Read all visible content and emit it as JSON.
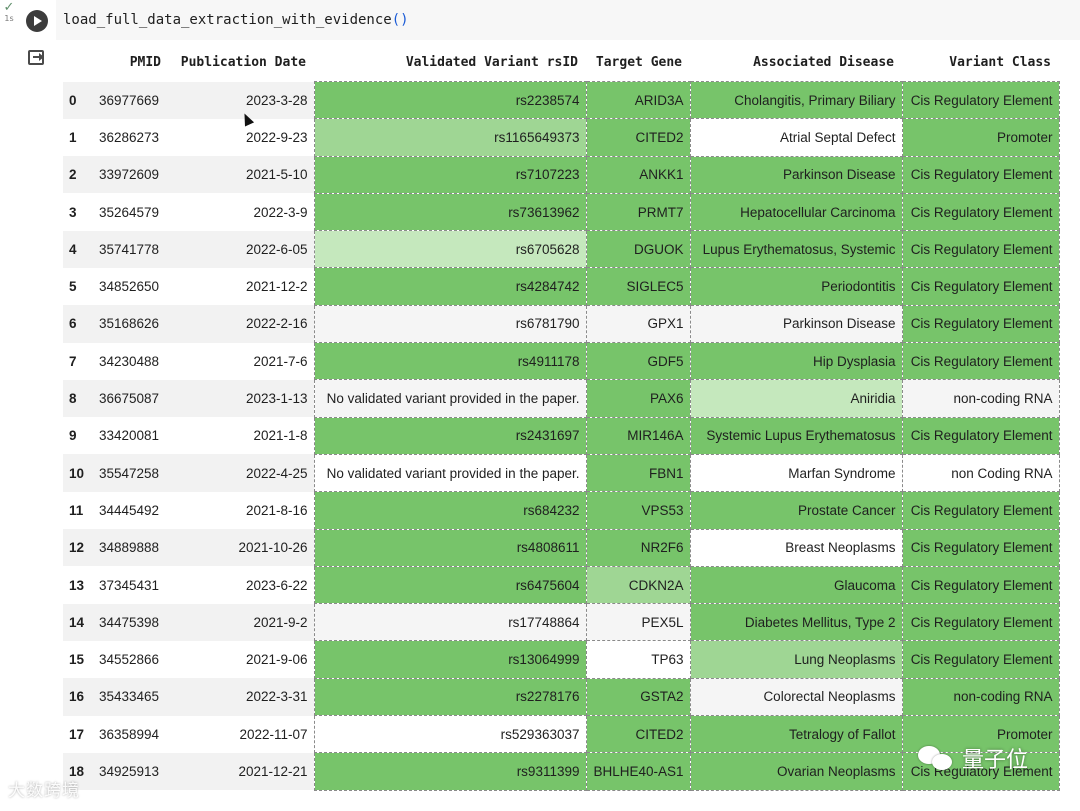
{
  "cell": {
    "status_check": "✓",
    "exec_time": "1s",
    "code_func": "load_full_data_extraction_with_evidence",
    "code_parens": "()"
  },
  "table": {
    "columns": [
      "",
      "PMID",
      "Publication Date",
      "Validated Variant rsID",
      "Target Gene",
      "Associated Disease",
      "Variant Class"
    ],
    "rows": [
      {
        "idx": "0",
        "pmid": "36977669",
        "date": "2023-3-28",
        "rsid": "rs2238574",
        "gene": "ARID3A",
        "disease": "Cholangitis, Primary Biliary",
        "cls": "Cis Regulatory Element",
        "lv": [
          "high",
          "high",
          "high",
          "high"
        ]
      },
      {
        "idx": "1",
        "pmid": "36286273",
        "date": "2022-9-23",
        "rsid": "rs1165649373",
        "gene": "CITED2",
        "disease": "Atrial Septal Defect",
        "cls": "Promoter",
        "lv": [
          "mid",
          "high",
          "none",
          "high"
        ]
      },
      {
        "idx": "2",
        "pmid": "33972609",
        "date": "2021-5-10",
        "rsid": "rs7107223",
        "gene": "ANKK1",
        "disease": "Parkinson Disease",
        "cls": "Cis Regulatory Element",
        "lv": [
          "high",
          "high",
          "high",
          "high"
        ]
      },
      {
        "idx": "3",
        "pmid": "35264579",
        "date": "2022-3-9",
        "rsid": "rs73613962",
        "gene": "PRMT7",
        "disease": "Hepatocellular Carcinoma",
        "cls": "Cis Regulatory Element",
        "lv": [
          "high",
          "high",
          "high",
          "high"
        ]
      },
      {
        "idx": "4",
        "pmid": "35741778",
        "date": "2022-6-05",
        "rsid": "rs6705628",
        "gene": "DGUOK",
        "disease": "Lupus Erythematosus, Systemic",
        "cls": "Cis Regulatory Element",
        "lv": [
          "low",
          "high",
          "high",
          "high"
        ]
      },
      {
        "idx": "5",
        "pmid": "34852650",
        "date": "2021-12-2",
        "rsid": "rs4284742",
        "gene": "SIGLEC5",
        "disease": "Periodontitis",
        "cls": "Cis Regulatory Element",
        "lv": [
          "high",
          "high",
          "high",
          "high"
        ]
      },
      {
        "idx": "6",
        "pmid": "35168626",
        "date": "2022-2-16",
        "rsid": "rs6781790",
        "gene": "GPX1",
        "disease": "Parkinson Disease",
        "cls": "Cis Regulatory Element",
        "lv": [
          "gray",
          "gray",
          "gray",
          "high"
        ]
      },
      {
        "idx": "7",
        "pmid": "34230488",
        "date": "2021-7-6",
        "rsid": "rs4911178",
        "gene": "GDF5",
        "disease": "Hip Dysplasia",
        "cls": "Cis Regulatory Element",
        "lv": [
          "high",
          "high",
          "high",
          "high"
        ]
      },
      {
        "idx": "8",
        "pmid": "36675087",
        "date": "2023-1-13",
        "rsid": "No validated variant provided in the paper.",
        "gene": "PAX6",
        "disease": "Aniridia",
        "cls": "non-coding RNA",
        "lv": [
          "gray",
          "high",
          "low",
          "gray"
        ]
      },
      {
        "idx": "9",
        "pmid": "33420081",
        "date": "2021-1-8",
        "rsid": "rs2431697",
        "gene": "MIR146A",
        "disease": "Systemic Lupus Erythematosus",
        "cls": "Cis Regulatory Element",
        "lv": [
          "high",
          "high",
          "high",
          "high"
        ]
      },
      {
        "idx": "10",
        "pmid": "35547258",
        "date": "2022-4-25",
        "rsid": "No validated variant provided in the paper.",
        "gene": "FBN1",
        "disease": "Marfan Syndrome",
        "cls": "non Coding RNA",
        "lv": [
          "none",
          "high",
          "none",
          "none"
        ]
      },
      {
        "idx": "11",
        "pmid": "34445492",
        "date": "2021-8-16",
        "rsid": "rs684232",
        "gene": "VPS53",
        "disease": "Prostate Cancer",
        "cls": "Cis Regulatory Element",
        "lv": [
          "high",
          "high",
          "high",
          "high"
        ]
      },
      {
        "idx": "12",
        "pmid": "34889888",
        "date": "2021-10-26",
        "rsid": "rs4808611",
        "gene": "NR2F6",
        "disease": "Breast Neoplasms",
        "cls": "Cis Regulatory Element",
        "lv": [
          "high",
          "high",
          "none",
          "high"
        ]
      },
      {
        "idx": "13",
        "pmid": "37345431",
        "date": "2023-6-22",
        "rsid": "rs6475604",
        "gene": "CDKN2A",
        "disease": "Glaucoma",
        "cls": "Cis Regulatory Element",
        "lv": [
          "high",
          "mid",
          "high",
          "high"
        ]
      },
      {
        "idx": "14",
        "pmid": "34475398",
        "date": "2021-9-2",
        "rsid": "rs17748864",
        "gene": "PEX5L",
        "disease": "Diabetes Mellitus, Type 2",
        "cls": "Cis Regulatory Element",
        "lv": [
          "gray",
          "gray",
          "high",
          "high"
        ]
      },
      {
        "idx": "15",
        "pmid": "34552866",
        "date": "2021-9-06",
        "rsid": "rs13064999",
        "gene": "TP63",
        "disease": "Lung Neoplasms",
        "cls": "Cis Regulatory Element",
        "lv": [
          "high",
          "none",
          "mid",
          "high"
        ]
      },
      {
        "idx": "16",
        "pmid": "35433465",
        "date": "2022-3-31",
        "rsid": "rs2278176",
        "gene": "GSTA2",
        "disease": "Colorectal Neoplasms",
        "cls": "non-coding RNA",
        "lv": [
          "high",
          "high",
          "gray",
          "high"
        ]
      },
      {
        "idx": "17",
        "pmid": "36358994",
        "date": "2022-11-07",
        "rsid": "rs529363037",
        "gene": "CITED2",
        "disease": "Tetralogy of Fallot",
        "cls": "Promoter",
        "lv": [
          "none",
          "high",
          "high",
          "high"
        ]
      },
      {
        "idx": "18",
        "pmid": "34925913",
        "date": "2021-12-21",
        "rsid": "rs9311399",
        "gene": "BHLHE40-AS1",
        "disease": "Ovarian Neoplasms",
        "cls": "Cis Regulatory Element",
        "lv": [
          "high",
          "high",
          "high",
          "high"
        ]
      }
    ]
  },
  "watermarks": {
    "left_text": "大数跨境",
    "right_text": "量子位"
  }
}
